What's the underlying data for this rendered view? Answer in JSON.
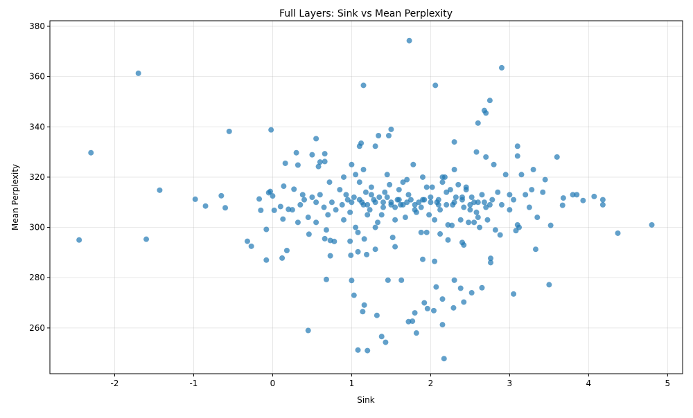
{
  "chart_data": {
    "type": "scatter",
    "title": "Full Layers: Sink vs Mean Perplexity",
    "x_label": "Sink",
    "y_label": "Mean Perplexity",
    "color": "#1f77b4",
    "grid": true,
    "xlim": [
      -2.82,
      5.19
    ],
    "ylim": [
      241.8,
      382.2
    ],
    "xticks": [
      -2,
      -1,
      0,
      1,
      2,
      3,
      4,
      5
    ],
    "yticks": [
      260,
      280,
      300,
      320,
      340,
      360,
      380
    ],
    "x": [
      -2.45,
      -2.3,
      -1.7,
      -1.6,
      -1.43,
      -0.98,
      -0.85,
      -0.65,
      -0.6,
      -0.55,
      -0.32,
      -0.27,
      -0.17,
      -0.15,
      -0.08,
      -0.08,
      -0.05,
      -0.03,
      -0.02,
      0,
      0.02,
      0.1,
      0.12,
      0.13,
      0.14,
      0.16,
      0.18,
      0.2,
      0.27,
      0.3,
      0.32,
      0.32,
      0.45,
      0.46,
      0.5,
      0.55,
      0.58,
      0.6,
      0.66,
      0.66,
      0.66,
      0.68,
      0.68,
      0.73,
      0.78,
      0.73,
      0.98,
      0.99,
      1.0,
      1.03,
      1.08,
      1.08,
      1.1,
      1.12,
      1.15,
      1.14,
      1.16,
      1.16,
      1.19,
      1.2,
      1.3,
      1.3,
      1.32,
      1.34,
      1.38,
      1.43,
      1.46,
      1.47,
      1.5,
      1.55,
      1.63,
      1.72,
      1.73,
      1.77,
      1.8,
      1.82,
      1.88,
      1.9,
      1.92,
      1.96,
      2.04,
      2.05,
      2.06,
      2.07,
      2.12,
      2.15,
      2.15,
      2.17,
      2.22,
      2.27,
      2.29,
      2.3,
      2.3,
      2.38,
      2.42,
      2.4,
      2.42,
      2.52,
      2.58,
      2.6,
      2.65,
      2.68,
      2.7,
      2.75,
      2.76,
      2.76,
      2.9,
      3.05,
      3.08,
      3.1,
      3.1,
      3.33,
      3.5,
      3.52,
      3.6,
      3.68,
      3.67,
      3.8,
      3.85,
      3.93,
      4.07,
      4.18,
      4.18,
      4.37,
      4.8,
      0.35,
      0.4,
      0.45,
      0.5,
      0.55,
      0.6,
      0.65,
      0.7,
      0.75,
      0.8,
      0.85,
      0.9,
      0.95,
      1.0,
      1.05,
      1.1,
      1.15,
      1.2,
      1.25,
      1.3,
      0.88,
      0.93,
      0.98,
      1.03,
      1.08,
      1.13,
      1.18,
      1.23,
      1.28,
      1.33,
      1.35,
      1.4,
      1.45,
      1.5,
      1.55,
      1.6,
      1.65,
      1.7,
      1.75,
      1.8,
      1.38,
      1.42,
      1.48,
      1.52,
      1.58,
      1.62,
      1.68,
      1.72,
      1.78,
      1.82,
      1.85,
      1.9,
      1.95,
      2.0,
      2.05,
      2.1,
      2.15,
      2.2,
      2.25,
      2.3,
      1.88,
      1.92,
      1.98,
      2.02,
      2.08,
      2.12,
      2.18,
      2.22,
      2.28,
      2.32,
      2.35,
      2.4,
      2.45,
      2.5,
      2.55,
      2.6,
      2.65,
      2.7,
      2.75,
      2.8,
      2.38,
      2.42,
      2.48,
      2.52,
      2.58,
      2.62,
      2.68,
      2.72,
      2.78,
      2.82,
      2.85,
      2.9,
      2.95,
      3.0,
      3.05,
      3.1,
      3.15,
      3.2,
      3.25,
      3.3,
      1.0,
      1.1,
      1.2,
      1.3,
      1.4,
      1.5,
      1.6,
      1.7,
      1.8,
      1.9,
      2.0,
      2.1,
      2.2,
      2.3,
      2.4,
      2.5,
      2.6,
      2.7,
      1.25,
      1.45,
      0.25,
      0.38,
      0.55,
      0.72,
      0.9,
      2.88,
      3.0,
      3.12,
      3.35,
      3.45,
      1.15,
      1.65,
      2.15,
      2.45,
      1.55,
      1.95,
      2.55,
      1.05,
      3.28,
      3.42
    ],
    "values": [
      295,
      329.7,
      361.3,
      295.3,
      314.8,
      311.2,
      308.5,
      312.6,
      307.8,
      338.2,
      294.5,
      292.5,
      311.3,
      306.8,
      299.2,
      287,
      313.8,
      314.3,
      338.8,
      312.5,
      306.8,
      308.3,
      287.8,
      303.3,
      316.4,
      325.5,
      290.8,
      307.2,
      315.2,
      329.7,
      324.8,
      302,
      259,
      297.3,
      328.9,
      335.3,
      324.2,
      326,
      326.2,
      329.3,
      295.5,
      279.3,
      299,
      288.7,
      294.4,
      294.8,
      294.5,
      288.9,
      278.9,
      273,
      290.3,
      251.2,
      332.3,
      333.5,
      356.5,
      266.5,
      269.1,
      295.4,
      289.2,
      251,
      291.3,
      332.3,
      265,
      336.5,
      256.6,
      254.3,
      279,
      336.5,
      339,
      292.3,
      279,
      262.5,
      374.3,
      262.7,
      266,
      258,
      298,
      287.3,
      270,
      267.7,
      266.9,
      286.5,
      356.5,
      276.3,
      297.4,
      271.5,
      261.3,
      247.8,
      295,
      300.8,
      268,
      279,
      334,
      275.8,
      270.3,
      294,
      293,
      274,
      330,
      341.5,
      276,
      346.5,
      345.5,
      350.5,
      287.7,
      286,
      363.5,
      273.5,
      298.7,
      332.3,
      328.4,
      291.3,
      277.2,
      300.8,
      328,
      311.7,
      308.8,
      313,
      313,
      310.7,
      312.3,
      311,
      309,
      297.7,
      301,
      309,
      311,
      304,
      312,
      302,
      313,
      308,
      305,
      310,
      307,
      315,
      320,
      311,
      325,
      321,
      318,
      309,
      305,
      316,
      300,
      309,
      313,
      306,
      312,
      298,
      310,
      314,
      307,
      311,
      302,
      312,
      308,
      321,
      310,
      303,
      315,
      309,
      319,
      311,
      307,
      305,
      314,
      317,
      296,
      311,
      309,
      304,
      313,
      325,
      306,
      310,
      320,
      316,
      312,
      303,
      309,
      318,
      314,
      315,
      323,
      308,
      311,
      305,
      316,
      310,
      307,
      320,
      301,
      309,
      312,
      317,
      311,
      316,
      307,
      310,
      304,
      313,
      328,
      309,
      325,
      303,
      308,
      302,
      312,
      306,
      300,
      310,
      303,
      311,
      299,
      314,
      309,
      321,
      307,
      311,
      301,
      321,
      313,
      308,
      323,
      310,
      311,
      309,
      310,
      310,
      309,
      311,
      310,
      309,
      311,
      310,
      311,
      309,
      310,
      312,
      309,
      310,
      308,
      313,
      312,
      307,
      313,
      310,
      318,
      303,
      297,
      313,
      300,
      304,
      319,
      323,
      318,
      320,
      315,
      308,
      298,
      302,
      300,
      315,
      314
    ]
  }
}
